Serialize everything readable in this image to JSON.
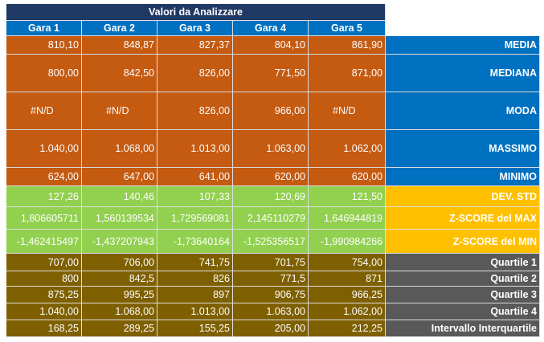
{
  "table": {
    "title": "Valori da Analizzare",
    "headers": [
      "Gara 1",
      "Gara 2",
      "Gara 3",
      "Gara 4",
      "Gara 5"
    ],
    "rows": [
      {
        "label": "MEDIA",
        "values": [
          "810,10",
          "848,87",
          "827,37",
          "804,10",
          "861,90"
        ]
      },
      {
        "label": "MEDIANA",
        "values": [
          "800,00",
          "842,50",
          "826,00",
          "771,50",
          "871,00"
        ]
      },
      {
        "label": "MODA",
        "values": [
          "#N/D",
          "#N/D",
          "826,00",
          "966,00",
          "#N/D"
        ]
      },
      {
        "label": "MASSIMO",
        "values": [
          "1.040,00",
          "1.068,00",
          "1.013,00",
          "1.063,00",
          "1.062,00"
        ]
      },
      {
        "label": "MINIMO",
        "values": [
          "624,00",
          "647,00",
          "641,00",
          "620,00",
          "620,00"
        ]
      },
      {
        "label": "DEV. STD",
        "values": [
          "127,26",
          "140,46",
          "107,33",
          "120,69",
          "121,50"
        ]
      },
      {
        "label": "Z-SCORE del MAX",
        "values": [
          "1,806605711",
          "1,560139534",
          "1,729569081",
          "2,145110279",
          "1,646944819"
        ]
      },
      {
        "label": "Z-SCORE del MIN",
        "values": [
          "-1,462415497",
          "-1,437207943",
          "-1,73640164",
          "-1,525356517",
          "-1,990984266"
        ]
      },
      {
        "label": "Quartile 1",
        "values": [
          "707,00",
          "706,00",
          "741,75",
          "701,75",
          "754,00"
        ]
      },
      {
        "label": "Quartile 2",
        "values": [
          "800",
          "842,5",
          "826",
          "771,5",
          "871"
        ]
      },
      {
        "label": "Quartile 3",
        "values": [
          "875,25",
          "995,25",
          "897",
          "906,75",
          "966,25"
        ]
      },
      {
        "label": "Quartile 4",
        "values": [
          "1.040,00",
          "1.068,00",
          "1.013,00",
          "1.063,00",
          "1.062,00"
        ]
      },
      {
        "label": "Intervallo Interquartile",
        "values": [
          "168,25",
          "289,25",
          "155,25",
          "205,00",
          "212,25"
        ]
      }
    ]
  }
}
